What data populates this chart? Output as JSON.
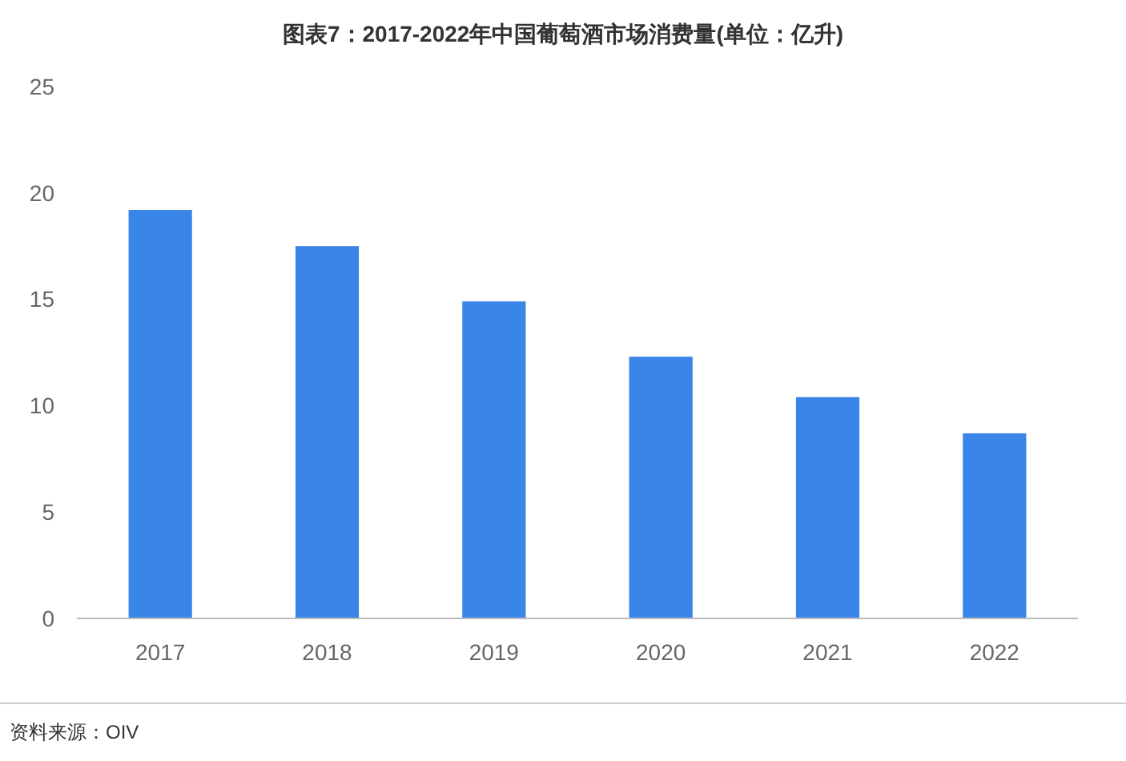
{
  "chart_data": {
    "type": "bar",
    "title": "图表7：2017-2022年中国葡萄酒市场消费量(单位：亿升)",
    "categories": [
      "2017",
      "2018",
      "2019",
      "2020",
      "2021",
      "2022"
    ],
    "values": [
      19.2,
      17.5,
      14.9,
      12.3,
      10.4,
      8.7
    ],
    "color": "#3a86e8",
    "ylim": [
      0,
      25
    ],
    "yticks": [
      0,
      5,
      10,
      15,
      20,
      25
    ],
    "annotations": [
      "资料来源：OIV"
    ]
  }
}
